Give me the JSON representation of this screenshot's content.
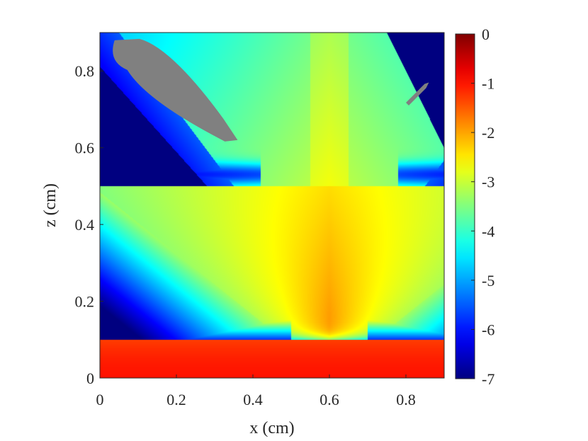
{
  "chart_data": {
    "type": "heatmap",
    "title": "",
    "xlabel": "x (cm)",
    "ylabel": "z (cm)",
    "xlim": [
      0,
      0.9
    ],
    "ylim": [
      0,
      0.9
    ],
    "x_ticks": [
      0,
      0.2,
      0.4,
      0.6,
      0.8
    ],
    "x_tick_labels": [
      "0",
      "0.2",
      "0.4",
      "0.6",
      "0.8"
    ],
    "y_ticks": [
      0,
      0.2,
      0.4,
      0.6,
      0.8
    ],
    "y_tick_labels": [
      "0",
      "0.2",
      "0.4",
      "0.6",
      "0.8"
    ],
    "colorbar": {
      "colormap": "jet",
      "range": [
        -7,
        0
      ],
      "ticks": [
        0,
        -1,
        -2,
        -3,
        -4,
        -5,
        -6,
        -7
      ],
      "tick_labels": [
        "0",
        "-1",
        "-2",
        "-3",
        "-4",
        "-5",
        "-6",
        "-7"
      ]
    },
    "grid": false,
    "masked_color": "#808080",
    "source_x": 0.6,
    "layers": [
      {
        "z_range": [
          0,
          0.1
        ],
        "value": -1.0
      },
      {
        "z_range": [
          0.1,
          0.5
        ],
        "value_at_source": -2.0,
        "value_background": -7.0
      },
      {
        "z_range": [
          0.5,
          0.9
        ],
        "value_center": -3.0,
        "value_background": -7.0
      }
    ],
    "masked_regions": [
      {
        "shape": "lobe",
        "x_range": [
          0.02,
          0.36
        ],
        "z_range": [
          0.62,
          0.88
        ]
      },
      {
        "shape": "lobe",
        "x_range": [
          0.8,
          0.86
        ],
        "z_range": [
          0.71,
          0.77
        ]
      }
    ]
  }
}
